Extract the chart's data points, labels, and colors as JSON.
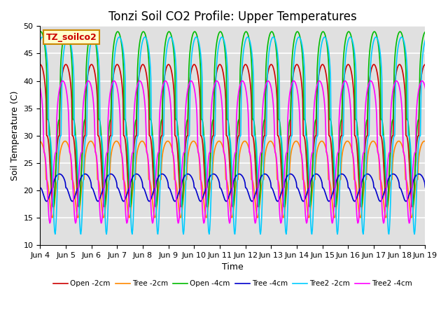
{
  "title": "Tonzi Soil CO2 Profile: Upper Temperatures",
  "xlabel": "Time",
  "ylabel": "Soil Temperature (C)",
  "ylim": [
    10,
    50
  ],
  "x_tick_labels": [
    "Jun 4",
    "Jun 5",
    "Jun 6",
    "Jun 7",
    "Jun 8",
    "Jun 9",
    "Jun 10",
    "Jun 11",
    "Jun 12",
    "Jun 13",
    "Jun 14",
    "Jun 15",
    "Jun 16",
    "Jun 17",
    "Jun 18",
    "Jun 19"
  ],
  "series": [
    {
      "label": "Open -2cm",
      "color": "#CC0000",
      "lw": 1.2,
      "amp": 26,
      "base": 17,
      "phase": 0.0,
      "peak_sharp": 3.0
    },
    {
      "label": "Tree -2cm",
      "color": "#FF8800",
      "lw": 1.2,
      "amp": 14,
      "base": 15,
      "phase": 0.03,
      "peak_sharp": 3.0
    },
    {
      "label": "Open -4cm",
      "color": "#00BB00",
      "lw": 1.2,
      "amp": 32,
      "base": 17,
      "phase": -0.02,
      "peak_sharp": 3.5
    },
    {
      "label": "Tree -4cm",
      "color": "#0000CC",
      "lw": 1.2,
      "amp": 5,
      "base": 18,
      "phase": 0.25,
      "peak_sharp": 2.0
    },
    {
      "label": "Tree2 -2cm",
      "color": "#00CCFF",
      "lw": 1.2,
      "amp": 36,
      "base": 12,
      "phase": -0.08,
      "peak_sharp": 4.0
    },
    {
      "label": "Tree2 -4cm",
      "color": "#FF00FF",
      "lw": 1.2,
      "amp": 26,
      "base": 14,
      "phase": 0.12,
      "peak_sharp": 3.0
    }
  ],
  "legend_box_label": "TZ_soilco2",
  "legend_box_facecolor": "#FFFFCC",
  "legend_box_edgecolor": "#CC8800",
  "plot_bg_color": "#E0E0E0",
  "title_fontsize": 12,
  "tick_fontsize": 8,
  "axis_label_fontsize": 9
}
